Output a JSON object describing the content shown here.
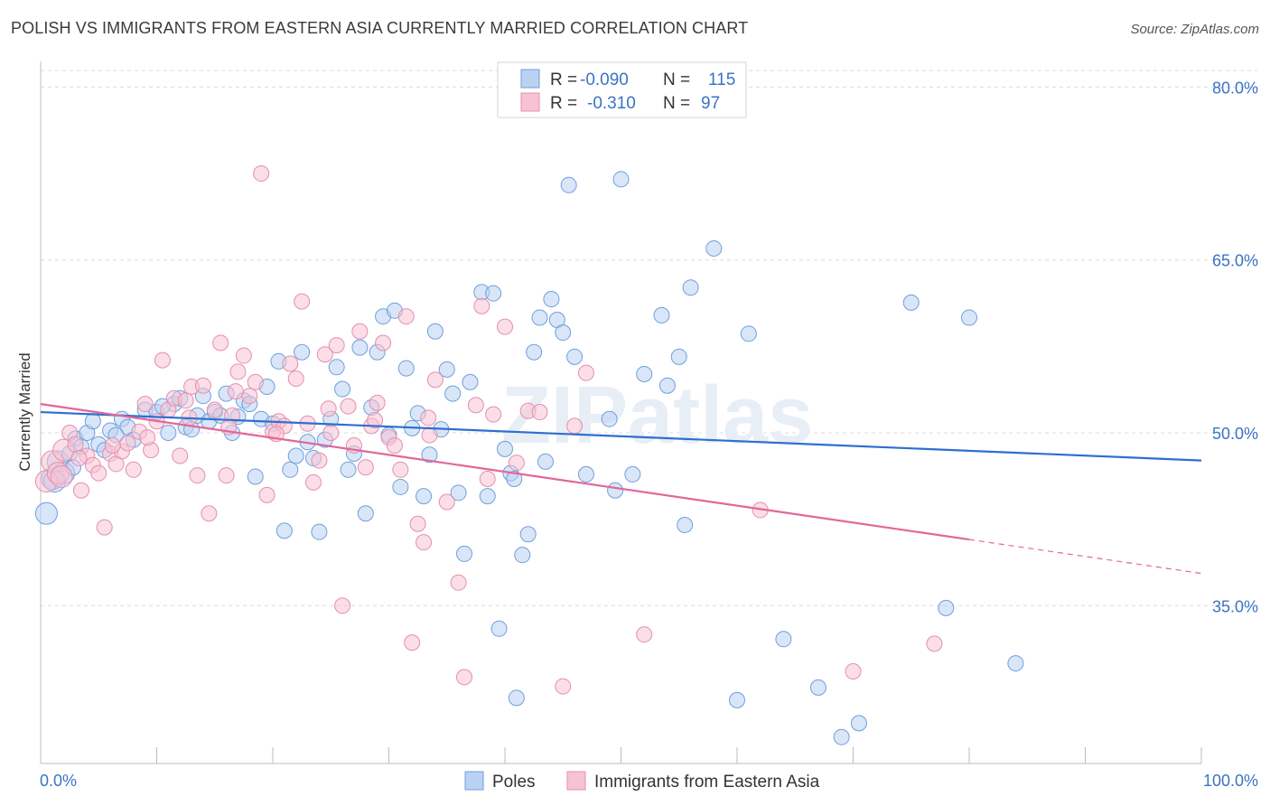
{
  "title": "POLISH VS IMMIGRANTS FROM EASTERN ASIA CURRENTLY MARRIED CORRELATION CHART",
  "source": "Source: ZipAtlas.com",
  "watermark": "ZIPatlas",
  "colors": {
    "blue_fill": "#b9d2f2",
    "blue_stroke": "#6f9fdc",
    "blue_line": "#2f6fcf",
    "pink_fill": "#f7c3d3",
    "pink_stroke": "#e58fae",
    "pink_line": "#e2669a",
    "tick_text": "#3b73c4"
  },
  "legend": {
    "rows": [
      {
        "r_label": "R = ",
        "r_value": "-0.090",
        "n_label": "N = ",
        "n_value": "115"
      },
      {
        "r_label": "R = ",
        "r_value": "-0.310",
        "n_label": "N = ",
        "n_value": "97"
      }
    ]
  },
  "chart_data": {
    "type": "scatter",
    "title": "POLISH VS IMMIGRANTS FROM EASTERN ASIA CURRENTLY MARRIED CORRELATION CHART",
    "xlabel": "",
    "ylabel": "Currently Married",
    "xlim": [
      0,
      100
    ],
    "ylim": [
      20,
      83
    ],
    "x_tick_labels": [
      "0.0%",
      "100.0%"
    ],
    "y_ticks": [
      35,
      50,
      65,
      80
    ],
    "y_tick_labels": [
      "35.0%",
      "50.0%",
      "65.0%",
      "80.0%"
    ],
    "grid": true,
    "legend_position": "bottom",
    "series": [
      {
        "name": "Poles",
        "color": "#b9d2f2",
        "trend": {
          "x": [
            0,
            100
          ],
          "y": [
            51.8,
            47.6
          ],
          "dashed_from": null
        },
        "points": [
          [
            0.5,
            43.0
          ],
          [
            1.0,
            46.0
          ],
          [
            1.5,
            47.5
          ],
          [
            2.0,
            46.5
          ],
          [
            2.5,
            48.2
          ],
          [
            3.0,
            49.5
          ],
          [
            3.5,
            48.8
          ],
          [
            4.0,
            50.0
          ],
          [
            4.5,
            51.0
          ],
          [
            5.0,
            49.0
          ],
          [
            5.5,
            48.5
          ],
          [
            6.0,
            50.2
          ],
          [
            7.0,
            51.2
          ],
          [
            7.5,
            50.5
          ],
          [
            8.0,
            49.4
          ],
          [
            9.0,
            52.0
          ],
          [
            10.0,
            51.8
          ],
          [
            11.0,
            50.0
          ],
          [
            11.5,
            52.5
          ],
          [
            12.0,
            53.0
          ],
          [
            12.5,
            50.5
          ],
          [
            13.0,
            50.3
          ],
          [
            13.5,
            51.5
          ],
          [
            14.0,
            53.2
          ],
          [
            14.5,
            51.0
          ],
          [
            15.0,
            51.8
          ],
          [
            15.5,
            51.5
          ],
          [
            16.0,
            53.4
          ],
          [
            16.5,
            50.0
          ],
          [
            17.0,
            51.4
          ],
          [
            17.5,
            52.8
          ],
          [
            18.5,
            46.2
          ],
          [
            19.0,
            51.2
          ],
          [
            19.5,
            54.0
          ],
          [
            20.0,
            50.8
          ],
          [
            20.5,
            56.2
          ],
          [
            21.0,
            41.5
          ],
          [
            21.5,
            46.8
          ],
          [
            22.0,
            48.0
          ],
          [
            22.5,
            57.0
          ],
          [
            23.0,
            49.2
          ],
          [
            23.5,
            47.8
          ],
          [
            24.0,
            41.4
          ],
          [
            24.5,
            49.4
          ],
          [
            25.0,
            51.2
          ],
          [
            25.5,
            55.7
          ],
          [
            26.0,
            53.8
          ],
          [
            26.5,
            46.8
          ],
          [
            27.0,
            48.2
          ],
          [
            27.5,
            57.4
          ],
          [
            28.0,
            43.0
          ],
          [
            28.5,
            52.2
          ],
          [
            29.0,
            57.0
          ],
          [
            29.5,
            60.1
          ],
          [
            30.0,
            49.8
          ],
          [
            30.5,
            60.6
          ],
          [
            31.0,
            45.3
          ],
          [
            31.5,
            55.6
          ],
          [
            32.0,
            50.4
          ],
          [
            32.5,
            51.7
          ],
          [
            33.0,
            44.5
          ],
          [
            33.5,
            48.1
          ],
          [
            34.0,
            58.8
          ],
          [
            34.5,
            50.3
          ],
          [
            35.0,
            55.5
          ],
          [
            35.5,
            53.4
          ],
          [
            36.0,
            44.8
          ],
          [
            36.5,
            39.5
          ],
          [
            37.0,
            54.4
          ],
          [
            38.0,
            62.2
          ],
          [
            38.5,
            44.5
          ],
          [
            39.0,
            62.1
          ],
          [
            39.5,
            33.0
          ],
          [
            40.0,
            48.6
          ],
          [
            40.5,
            46.5
          ],
          [
            41.0,
            27.0
          ],
          [
            41.5,
            39.4
          ],
          [
            42.0,
            41.2
          ],
          [
            42.5,
            57.0
          ],
          [
            43.0,
            60.0
          ],
          [
            43.5,
            47.5
          ],
          [
            44.0,
            61.6
          ],
          [
            44.5,
            59.8
          ],
          [
            45.0,
            58.7
          ],
          [
            45.5,
            71.5
          ],
          [
            46.0,
            56.6
          ],
          [
            47.0,
            46.4
          ],
          [
            48.0,
            78.4
          ],
          [
            49.0,
            51.2
          ],
          [
            49.5,
            45.0
          ],
          [
            50.0,
            72.0
          ],
          [
            51.0,
            46.4
          ],
          [
            52.0,
            55.1
          ],
          [
            53.5,
            60.2
          ],
          [
            54.0,
            54.1
          ],
          [
            55.0,
            56.6
          ],
          [
            55.5,
            42.0
          ],
          [
            56.0,
            62.6
          ],
          [
            58.0,
            66.0
          ],
          [
            60.0,
            26.8
          ],
          [
            61.0,
            58.6
          ],
          [
            64.0,
            32.1
          ],
          [
            67.0,
            27.9
          ],
          [
            69.0,
            23.6
          ],
          [
            70.5,
            24.8
          ],
          [
            75.0,
            61.3
          ],
          [
            78.0,
            34.8
          ],
          [
            80.0,
            60.0
          ],
          [
            84.0,
            30.0
          ],
          [
            1.2,
            45.8
          ],
          [
            2.8,
            47.0
          ],
          [
            6.5,
            49.8
          ],
          [
            10.5,
            52.3
          ],
          [
            18.0,
            52.5
          ],
          [
            40.8,
            46.0
          ]
        ]
      },
      {
        "name": "Immigrants from Eastern Asia",
        "color": "#f7c3d3",
        "trend": {
          "x": [
            0,
            100
          ],
          "y": [
            52.5,
            37.8
          ],
          "dashed_from": 80
        },
        "points": [
          [
            0.5,
            45.8
          ],
          [
            1.0,
            47.5
          ],
          [
            1.5,
            46.5
          ],
          [
            2.0,
            48.5
          ],
          [
            2.5,
            50.0
          ],
          [
            3.0,
            49.0
          ],
          [
            3.5,
            45.0
          ],
          [
            4.0,
            48.0
          ],
          [
            4.5,
            47.2
          ],
          [
            5.0,
            46.5
          ],
          [
            5.5,
            41.8
          ],
          [
            6.0,
            48.2
          ],
          [
            6.5,
            47.3
          ],
          [
            7.0,
            48.4
          ],
          [
            7.5,
            49.1
          ],
          [
            8.0,
            46.8
          ],
          [
            8.5,
            50.1
          ],
          [
            9.0,
            52.5
          ],
          [
            9.5,
            48.5
          ],
          [
            10.0,
            51.0
          ],
          [
            10.5,
            56.3
          ],
          [
            11.0,
            52.0
          ],
          [
            11.5,
            53.0
          ],
          [
            12.0,
            48.0
          ],
          [
            12.5,
            52.8
          ],
          [
            13.0,
            54.0
          ],
          [
            13.5,
            46.3
          ],
          [
            14.0,
            54.1
          ],
          [
            14.5,
            43.0
          ],
          [
            15.0,
            52.0
          ],
          [
            15.5,
            57.8
          ],
          [
            16.0,
            46.3
          ],
          [
            16.5,
            51.5
          ],
          [
            17.0,
            55.3
          ],
          [
            17.5,
            56.7
          ],
          [
            18.0,
            53.2
          ],
          [
            18.5,
            54.4
          ],
          [
            19.0,
            72.5
          ],
          [
            19.5,
            44.6
          ],
          [
            20.0,
            50.1
          ],
          [
            20.5,
            51.0
          ],
          [
            21.0,
            50.6
          ],
          [
            21.5,
            56.0
          ],
          [
            22.0,
            54.7
          ],
          [
            22.5,
            61.4
          ],
          [
            23.0,
            50.8
          ],
          [
            23.5,
            45.7
          ],
          [
            24.0,
            47.6
          ],
          [
            24.5,
            56.8
          ],
          [
            25.0,
            50.0
          ],
          [
            25.5,
            57.6
          ],
          [
            26.0,
            35.0
          ],
          [
            26.5,
            52.3
          ],
          [
            27.0,
            48.9
          ],
          [
            27.5,
            58.8
          ],
          [
            28.0,
            47.0
          ],
          [
            28.5,
            50.6
          ],
          [
            29.0,
            52.6
          ],
          [
            29.5,
            57.8
          ],
          [
            30.0,
            49.6
          ],
          [
            30.5,
            48.9
          ],
          [
            31.0,
            46.8
          ],
          [
            31.5,
            60.1
          ],
          [
            32.0,
            31.8
          ],
          [
            32.5,
            42.1
          ],
          [
            33.0,
            40.5
          ],
          [
            33.5,
            49.8
          ],
          [
            34.0,
            54.6
          ],
          [
            35.0,
            44.0
          ],
          [
            36.0,
            37.0
          ],
          [
            36.5,
            28.8
          ],
          [
            37.5,
            52.4
          ],
          [
            38.0,
            61.0
          ],
          [
            38.5,
            46.0
          ],
          [
            39.0,
            51.6
          ],
          [
            40.0,
            59.2
          ],
          [
            41.0,
            47.4
          ],
          [
            42.0,
            51.9
          ],
          [
            43.0,
            51.8
          ],
          [
            45.0,
            28.0
          ],
          [
            46.0,
            50.6
          ],
          [
            47.0,
            55.2
          ],
          [
            52.0,
            32.5
          ],
          [
            62.0,
            43.3
          ],
          [
            70.0,
            29.3
          ],
          [
            77.0,
            31.7
          ],
          [
            1.8,
            46.2
          ],
          [
            3.3,
            47.8
          ],
          [
            6.2,
            48.9
          ],
          [
            9.2,
            49.6
          ],
          [
            12.8,
            51.3
          ],
          [
            16.8,
            53.6
          ],
          [
            20.3,
            49.9
          ],
          [
            24.8,
            52.1
          ],
          [
            28.8,
            51.1
          ],
          [
            33.4,
            51.3
          ],
          [
            16.2,
            50.5
          ]
        ]
      }
    ]
  },
  "bottom_legend": {
    "items": [
      {
        "label": "Poles"
      },
      {
        "label": "Immigrants from Eastern Asia"
      }
    ]
  }
}
